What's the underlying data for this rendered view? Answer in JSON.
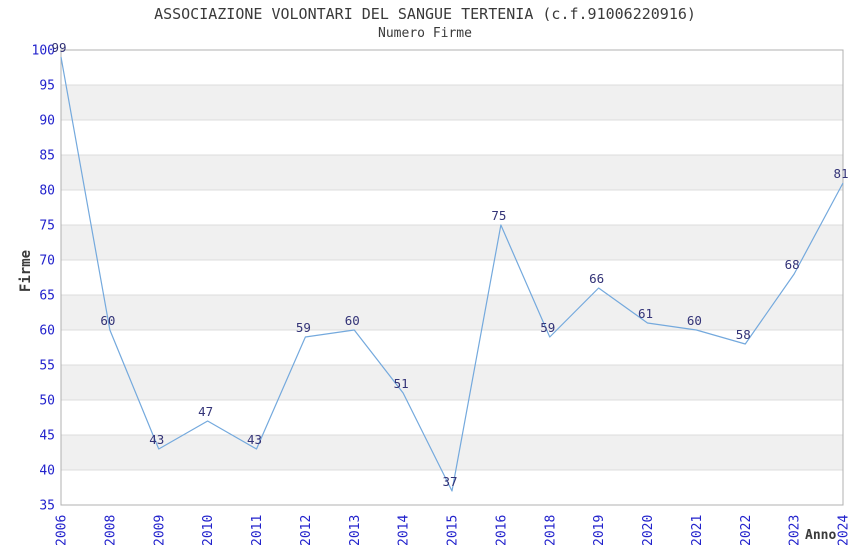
{
  "chart_data": {
    "type": "line",
    "title": "ASSOCIAZIONE VOLONTARI DEL SANGUE TERTENIA (c.f.91006220916)",
    "subtitle": "Numero Firme",
    "xlabel": "Anno",
    "ylabel": "Firme",
    "categories": [
      "2006",
      "2008",
      "2009",
      "2010",
      "2011",
      "2012",
      "2013",
      "2014",
      "2015",
      "2016",
      "2018",
      "2019",
      "2020",
      "2021",
      "2022",
      "2023",
      "2024"
    ],
    "values": [
      99,
      60,
      43,
      47,
      43,
      59,
      60,
      51,
      37,
      75,
      59,
      66,
      61,
      60,
      58,
      68,
      81
    ],
    "ylim": [
      35,
      100
    ],
    "ytick_step": 5,
    "grid": "horizontal",
    "plot_bands": "alternating white/gray every 5 units (gray: 40-45,50-55,60-65,70-75,80-85,90-95)",
    "legend": "none",
    "data_labels": "above each point",
    "x_tick_rotation": -90,
    "colors": {
      "line": "#74a9dd",
      "tick_labels": "#2222cc",
      "data_labels": "#333377",
      "text": "#3a3a3a",
      "band": "#f0f0f0",
      "gridline": "#dcdcdc",
      "border": "#b0b0b0",
      "background": "#ffffff"
    }
  }
}
